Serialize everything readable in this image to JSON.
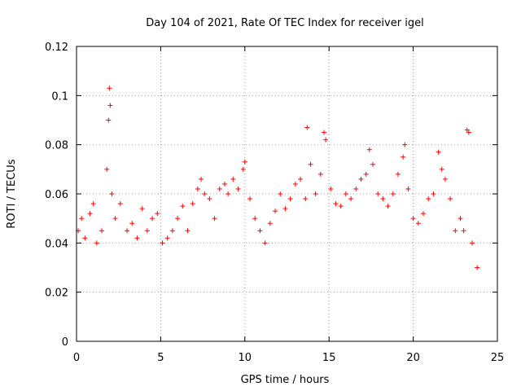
{
  "chart_data": {
    "type": "scatter",
    "title": "Day 104 of 2021, Rate Of TEC Index for receiver igel",
    "xlabel": "GPS time / hours",
    "ylabel": "ROTI / TECUs",
    "xlim": [
      0,
      25
    ],
    "ylim": [
      0,
      0.12
    ],
    "xticks": [
      0,
      5,
      10,
      15,
      20,
      25
    ],
    "xtick_labels": [
      "0",
      "5",
      "10",
      "15",
      "20",
      "25"
    ],
    "yticks": [
      0,
      0.02,
      0.04,
      0.06,
      0.08,
      0.1,
      0.12
    ],
    "ytick_labels": [
      "0",
      "0.02",
      "0.04",
      "0.06",
      "0.08",
      "0.1",
      "0.12"
    ],
    "grid": true,
    "marker": "+",
    "series": [
      {
        "name": "ROTI",
        "color": "#ff0000",
        "x": [
          0.1,
          0.3,
          0.5,
          0.8,
          1.0,
          1.2,
          1.5,
          1.8,
          1.9,
          1.95,
          2.0,
          2.1,
          2.3,
          2.6,
          3.0,
          3.3,
          3.6,
          3.9,
          4.2,
          4.5,
          4.8,
          5.1,
          5.4,
          5.7,
          6.0,
          6.3,
          6.6,
          6.9,
          7.2,
          7.4,
          7.6,
          7.9,
          8.2,
          8.5,
          8.8,
          9.0,
          9.3,
          9.6,
          9.9,
          10.0,
          10.3,
          10.6,
          10.9,
          11.2,
          11.5,
          11.8,
          12.1,
          12.4,
          12.7,
          13.0,
          13.3,
          13.6,
          13.7,
          13.9,
          14.2,
          14.5,
          14.7,
          14.8,
          15.1,
          15.4,
          15.7,
          16.0,
          16.3,
          16.6,
          16.9,
          17.2,
          17.4,
          17.6,
          17.9,
          18.2,
          18.5,
          18.8,
          19.1,
          19.4,
          19.5,
          19.7,
          20.0,
          20.3,
          20.6,
          20.9,
          21.2,
          21.5,
          21.7,
          21.9,
          22.2,
          22.5,
          22.8,
          23.0,
          23.2,
          23.3,
          23.5,
          23.8
        ],
        "y": [
          0.045,
          0.05,
          0.042,
          0.052,
          0.056,
          0.04,
          0.045,
          0.07,
          0.09,
          0.103,
          0.096,
          0.06,
          0.05,
          0.056,
          0.045,
          0.048,
          0.042,
          0.054,
          0.045,
          0.05,
          0.052,
          0.04,
          0.042,
          0.045,
          0.05,
          0.055,
          0.045,
          0.056,
          0.062,
          0.066,
          0.06,
          0.058,
          0.05,
          0.062,
          0.064,
          0.06,
          0.066,
          0.062,
          0.07,
          0.073,
          0.058,
          0.05,
          0.045,
          0.04,
          0.048,
          0.053,
          0.06,
          0.054,
          0.058,
          0.064,
          0.066,
          0.058,
          0.087,
          0.072,
          0.06,
          0.068,
          0.085,
          0.082,
          0.062,
          0.056,
          0.055,
          0.06,
          0.058,
          0.062,
          0.066,
          0.068,
          0.078,
          0.072,
          0.06,
          0.058,
          0.055,
          0.06,
          0.068,
          0.075,
          0.08,
          0.062,
          0.05,
          0.048,
          0.052,
          0.058,
          0.06,
          0.077,
          0.07,
          0.066,
          0.058,
          0.045,
          0.05,
          0.045,
          0.086,
          0.085,
          0.04,
          0.03
        ]
      }
    ]
  }
}
